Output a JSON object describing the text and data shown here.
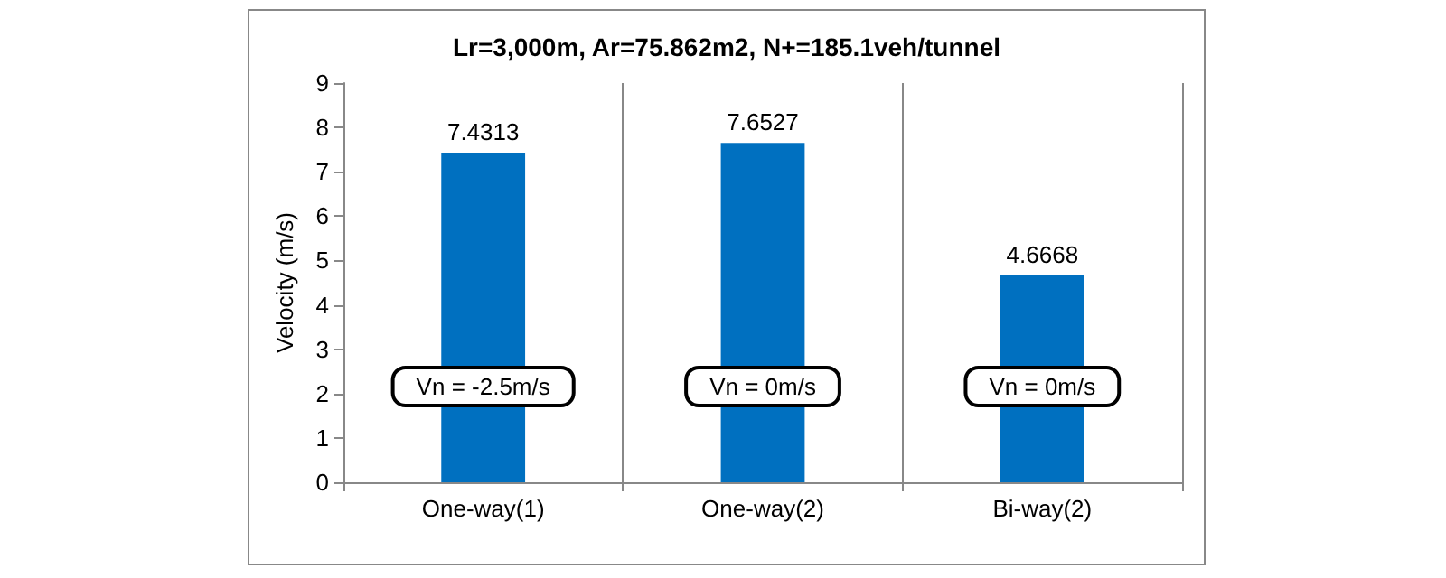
{
  "chart_data": {
    "type": "bar",
    "title": "Lr=3,000m, Ar=75.862m2, N+=185.1veh/tunnel",
    "ylabel": "Velocity (m/s)",
    "categories": [
      "One-way(1)",
      "One-way(2)",
      "Bi-way(2)"
    ],
    "values": [
      7.4313,
      7.6527,
      4.6668
    ],
    "color": "#0070c0",
    "ylim": [
      0,
      9
    ],
    "yticks": [
      0,
      1,
      2,
      3,
      4,
      5,
      6,
      7,
      8,
      9
    ],
    "grid": "x",
    "data_labels": true,
    "annotations": [
      "Vn = -2.5m/s",
      "Vn = 0m/s",
      "Vn = 0m/s"
    ]
  }
}
